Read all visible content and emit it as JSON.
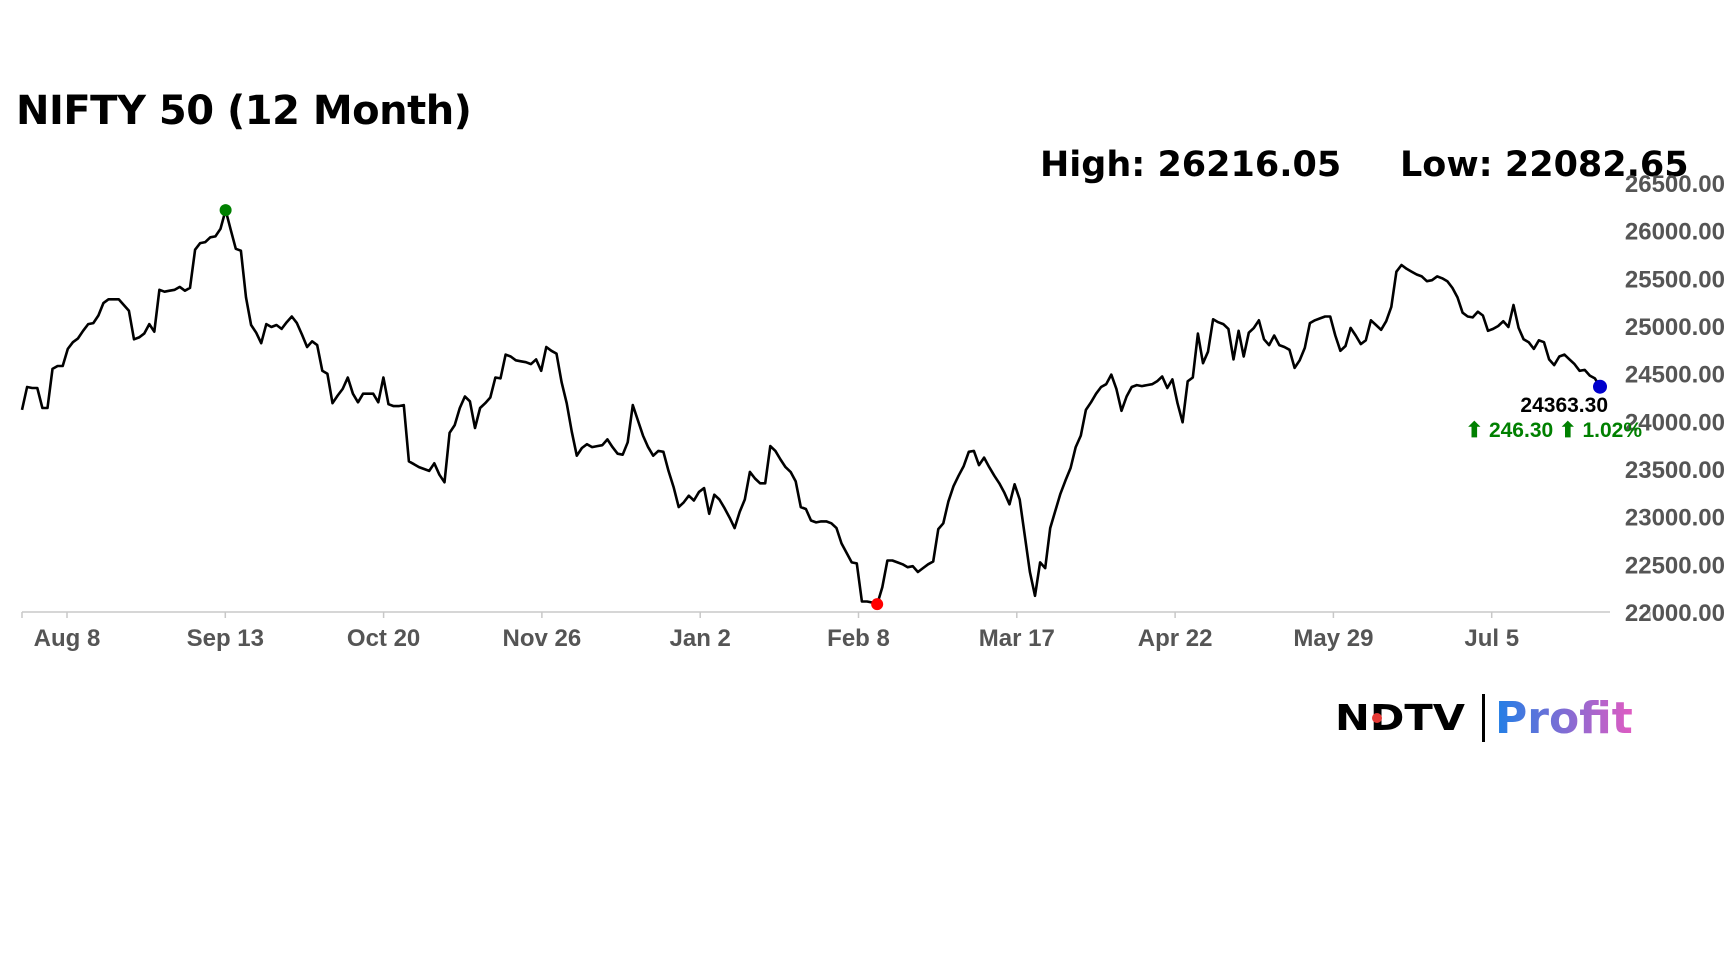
{
  "title": "NIFTY 50 (12 Month)",
  "stats": {
    "high_label": "High: 26216.05",
    "low_label": "Low: 22082.65",
    "high": 26216.05,
    "low": 22082.65
  },
  "last": {
    "value": "24363.30",
    "change": "⬆ 246.30 ⬆ 1.02%"
  },
  "brand": {
    "left": "NDTV",
    "right": "Profit"
  },
  "colors": {
    "line": "#000000",
    "high_marker": "#008000",
    "low_marker": "#ff0000",
    "last_marker": "#0000cc",
    "change_text": "#008000",
    "brand_blue": "#1f7fe6",
    "brand_pink": "#e05bc2"
  },
  "chart_data": {
    "type": "line",
    "title": "NIFTY 50 (12 Month)",
    "xlabel": "",
    "ylabel": "",
    "ylim": [
      22000,
      26500
    ],
    "y_ticks": [
      "22000.00",
      "22500.00",
      "23000.00",
      "23500.00",
      "24000.00",
      "24500.00",
      "25000.00",
      "25500.00",
      "26000.00",
      "26500.00"
    ],
    "x_ticks": [
      "Aug 8",
      "Sep 13",
      "Oct 20",
      "Nov 26",
      "Jan 2",
      "Feb 8",
      "Mar 17",
      "Apr 22",
      "May 29",
      "Jul 5"
    ],
    "grid": false,
    "series": [
      {
        "values": [
          24120,
          24360,
          24350,
          24350,
          24140,
          24140,
          24550,
          24580,
          24580,
          24760,
          24830,
          24870,
          24950,
          25020,
          25030,
          25110,
          25240,
          25280,
          25280,
          25280,
          25220,
          25160,
          24860,
          24880,
          24920,
          25020,
          24940,
          25380,
          25360,
          25370,
          25380,
          25410,
          25370,
          25400,
          25800,
          25870,
          25880,
          25930,
          25940,
          26020,
          26216,
          26010,
          25810,
          25790,
          25300,
          25010,
          24930,
          24820,
          25020,
          24990,
          25010,
          24970,
          25040,
          25100,
          25030,
          24910,
          24780,
          24840,
          24800,
          24530,
          24500,
          24190,
          24270,
          24340,
          24460,
          24290,
          24200,
          24290,
          24290,
          24290,
          24200,
          24460,
          24180,
          24160,
          24160,
          24170,
          23580,
          23550,
          23520,
          23500,
          23480,
          23560,
          23440,
          23360,
          23880,
          23960,
          24140,
          24260,
          24210,
          23930,
          24140,
          24190,
          24250,
          24460,
          24450,
          24700,
          24680,
          24640,
          24630,
          24620,
          24600,
          24650,
          24530,
          24780,
          24740,
          24710,
          24410,
          24190,
          23890,
          23640,
          23720,
          23760,
          23730,
          23740,
          23750,
          23810,
          23730,
          23660,
          23650,
          23780,
          24170,
          24010,
          23850,
          23730,
          23640,
          23690,
          23680,
          23480,
          23310,
          23100,
          23150,
          23220,
          23170,
          23260,
          23300,
          23030,
          23230,
          23180,
          23090,
          22990,
          22880,
          23050,
          23180,
          23470,
          23400,
          23350,
          23350,
          23740,
          23690,
          23600,
          23520,
          23470,
          23370,
          23100,
          23080,
          22960,
          22940,
          22950,
          22950,
          22930,
          22880,
          22720,
          22620,
          22520,
          22510,
          22110,
          22110,
          22100,
          22082,
          22260,
          22540,
          22540,
          22520,
          22500,
          22470,
          22480,
          22420,
          22460,
          22500,
          22530,
          22870,
          22930,
          23160,
          23320,
          23430,
          23530,
          23680,
          23690,
          23540,
          23620,
          23520,
          23430,
          23350,
          23250,
          23130,
          23340,
          23180,
          22800,
          22420,
          22170,
          22520,
          22460,
          22880,
          23060,
          23240,
          23380,
          23510,
          23730,
          23850,
          24120,
          24200,
          24290,
          24360,
          24390,
          24490,
          24340,
          24110,
          24260,
          24360,
          24380,
          24370,
          24380,
          24390,
          24420,
          24470,
          24350,
          24440,
          24190,
          23990,
          24420,
          24460,
          24920,
          24610,
          24730,
          25070,
          25040,
          25020,
          24970,
          24650,
          24950,
          24680,
          24930,
          24980,
          25060,
          24860,
          24800,
          24900,
          24800,
          24780,
          24750,
          24560,
          24640,
          24770,
          25030,
          25060,
          25080,
          25100,
          25100,
          24900,
          24740,
          24790,
          24980,
          24900,
          24810,
          24850,
          25060,
          25010,
          24960,
          25050,
          25200,
          25570,
          25640,
          25600,
          25570,
          25540,
          25520,
          25470,
          25480,
          25520,
          25500,
          25470,
          25400,
          25300,
          25140,
          25100,
          25090,
          25150,
          25110,
          24950,
          24970,
          25000,
          25050,
          24990,
          25220,
          24980,
          24860,
          24830,
          24760,
          24850,
          24830,
          24650,
          24590,
          24680,
          24700,
          24650,
          24600,
          24530,
          24540,
          24480,
          24450,
          24363
        ]
      }
    ]
  }
}
